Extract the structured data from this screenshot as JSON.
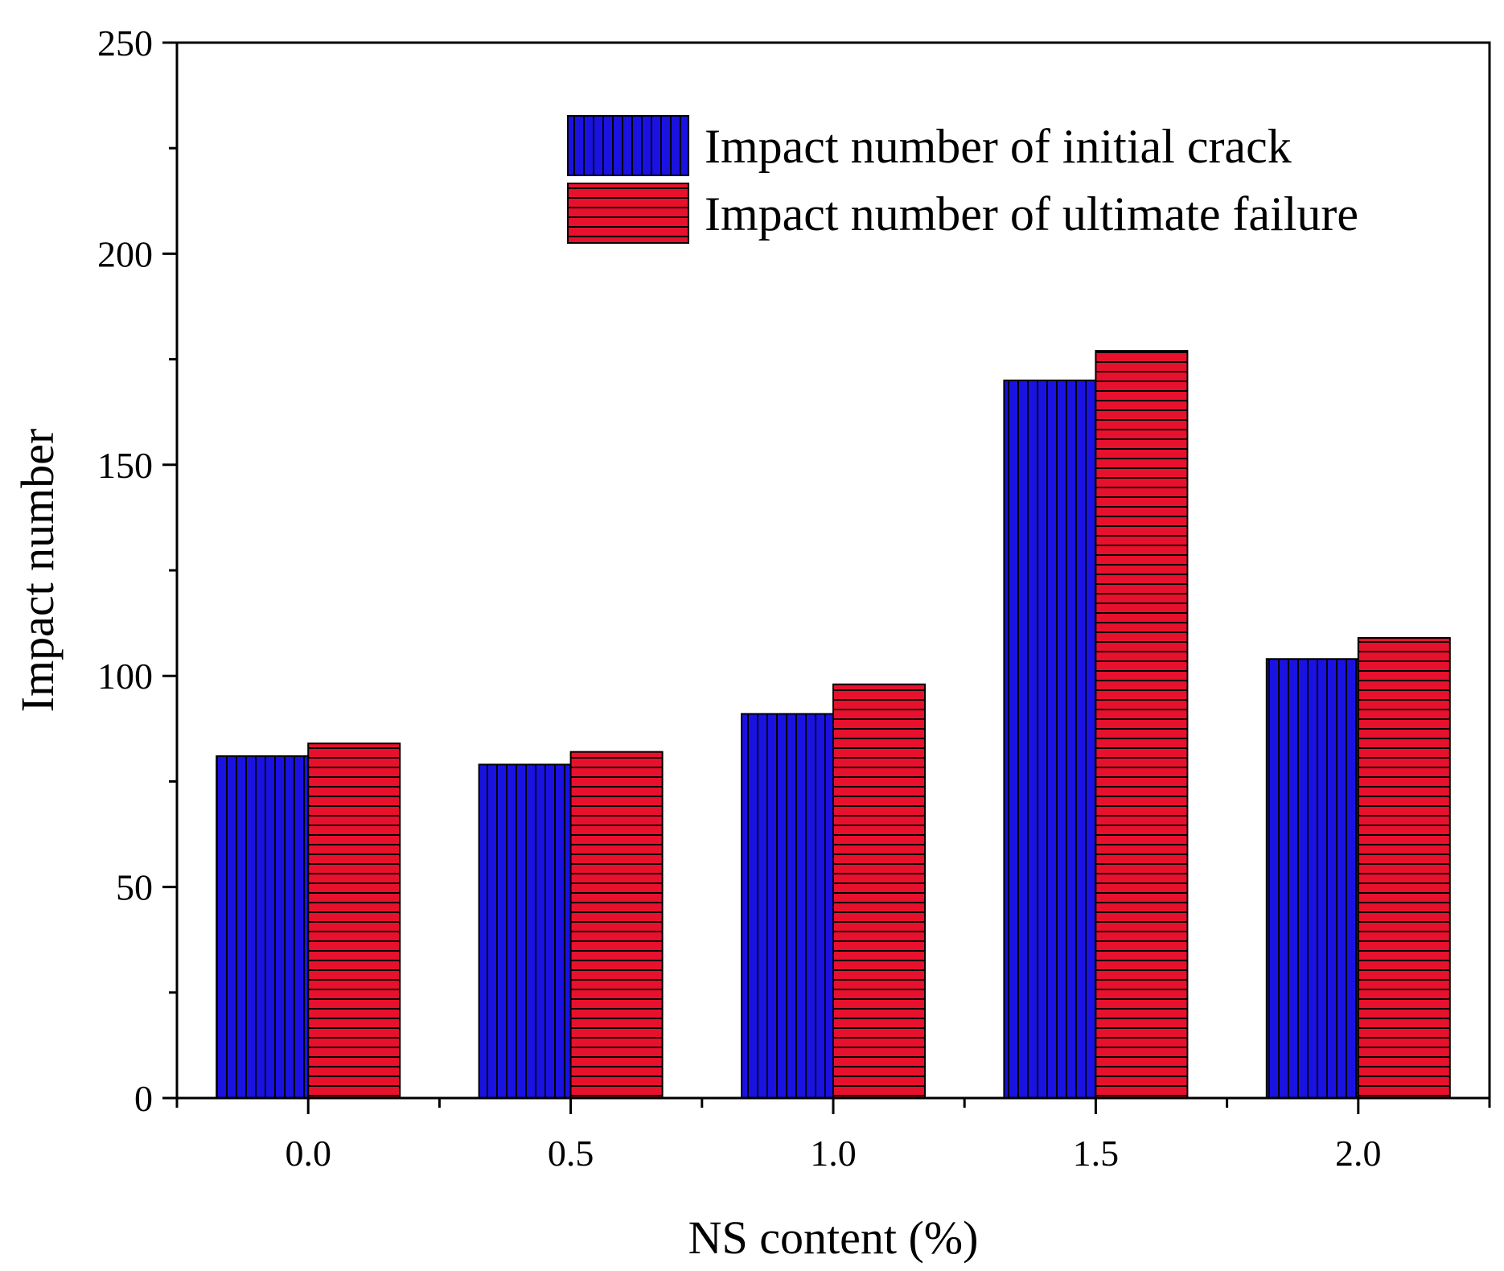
{
  "chart_data": {
    "type": "bar",
    "title": "",
    "xlabel": "NS content (%)",
    "ylabel": "Impact number",
    "categories": [
      "0.0",
      "0.5",
      "1.0",
      "1.5",
      "2.0"
    ],
    "ylim": [
      0,
      250
    ],
    "yticks": [
      "0",
      "50",
      "100",
      "150",
      "200",
      "250"
    ],
    "grid": false,
    "legend_position": "top-right",
    "series": [
      {
        "name": "Impact number of initial crack",
        "color": "#1a12e0",
        "pattern": "vertical-lines",
        "values": [
          81,
          79,
          91,
          170,
          104
        ]
      },
      {
        "name": "Impact number of ultimate failure",
        "color": "#e8112d",
        "pattern": "horizontal-lines",
        "values": [
          84,
          82,
          98,
          177,
          109
        ]
      }
    ]
  }
}
